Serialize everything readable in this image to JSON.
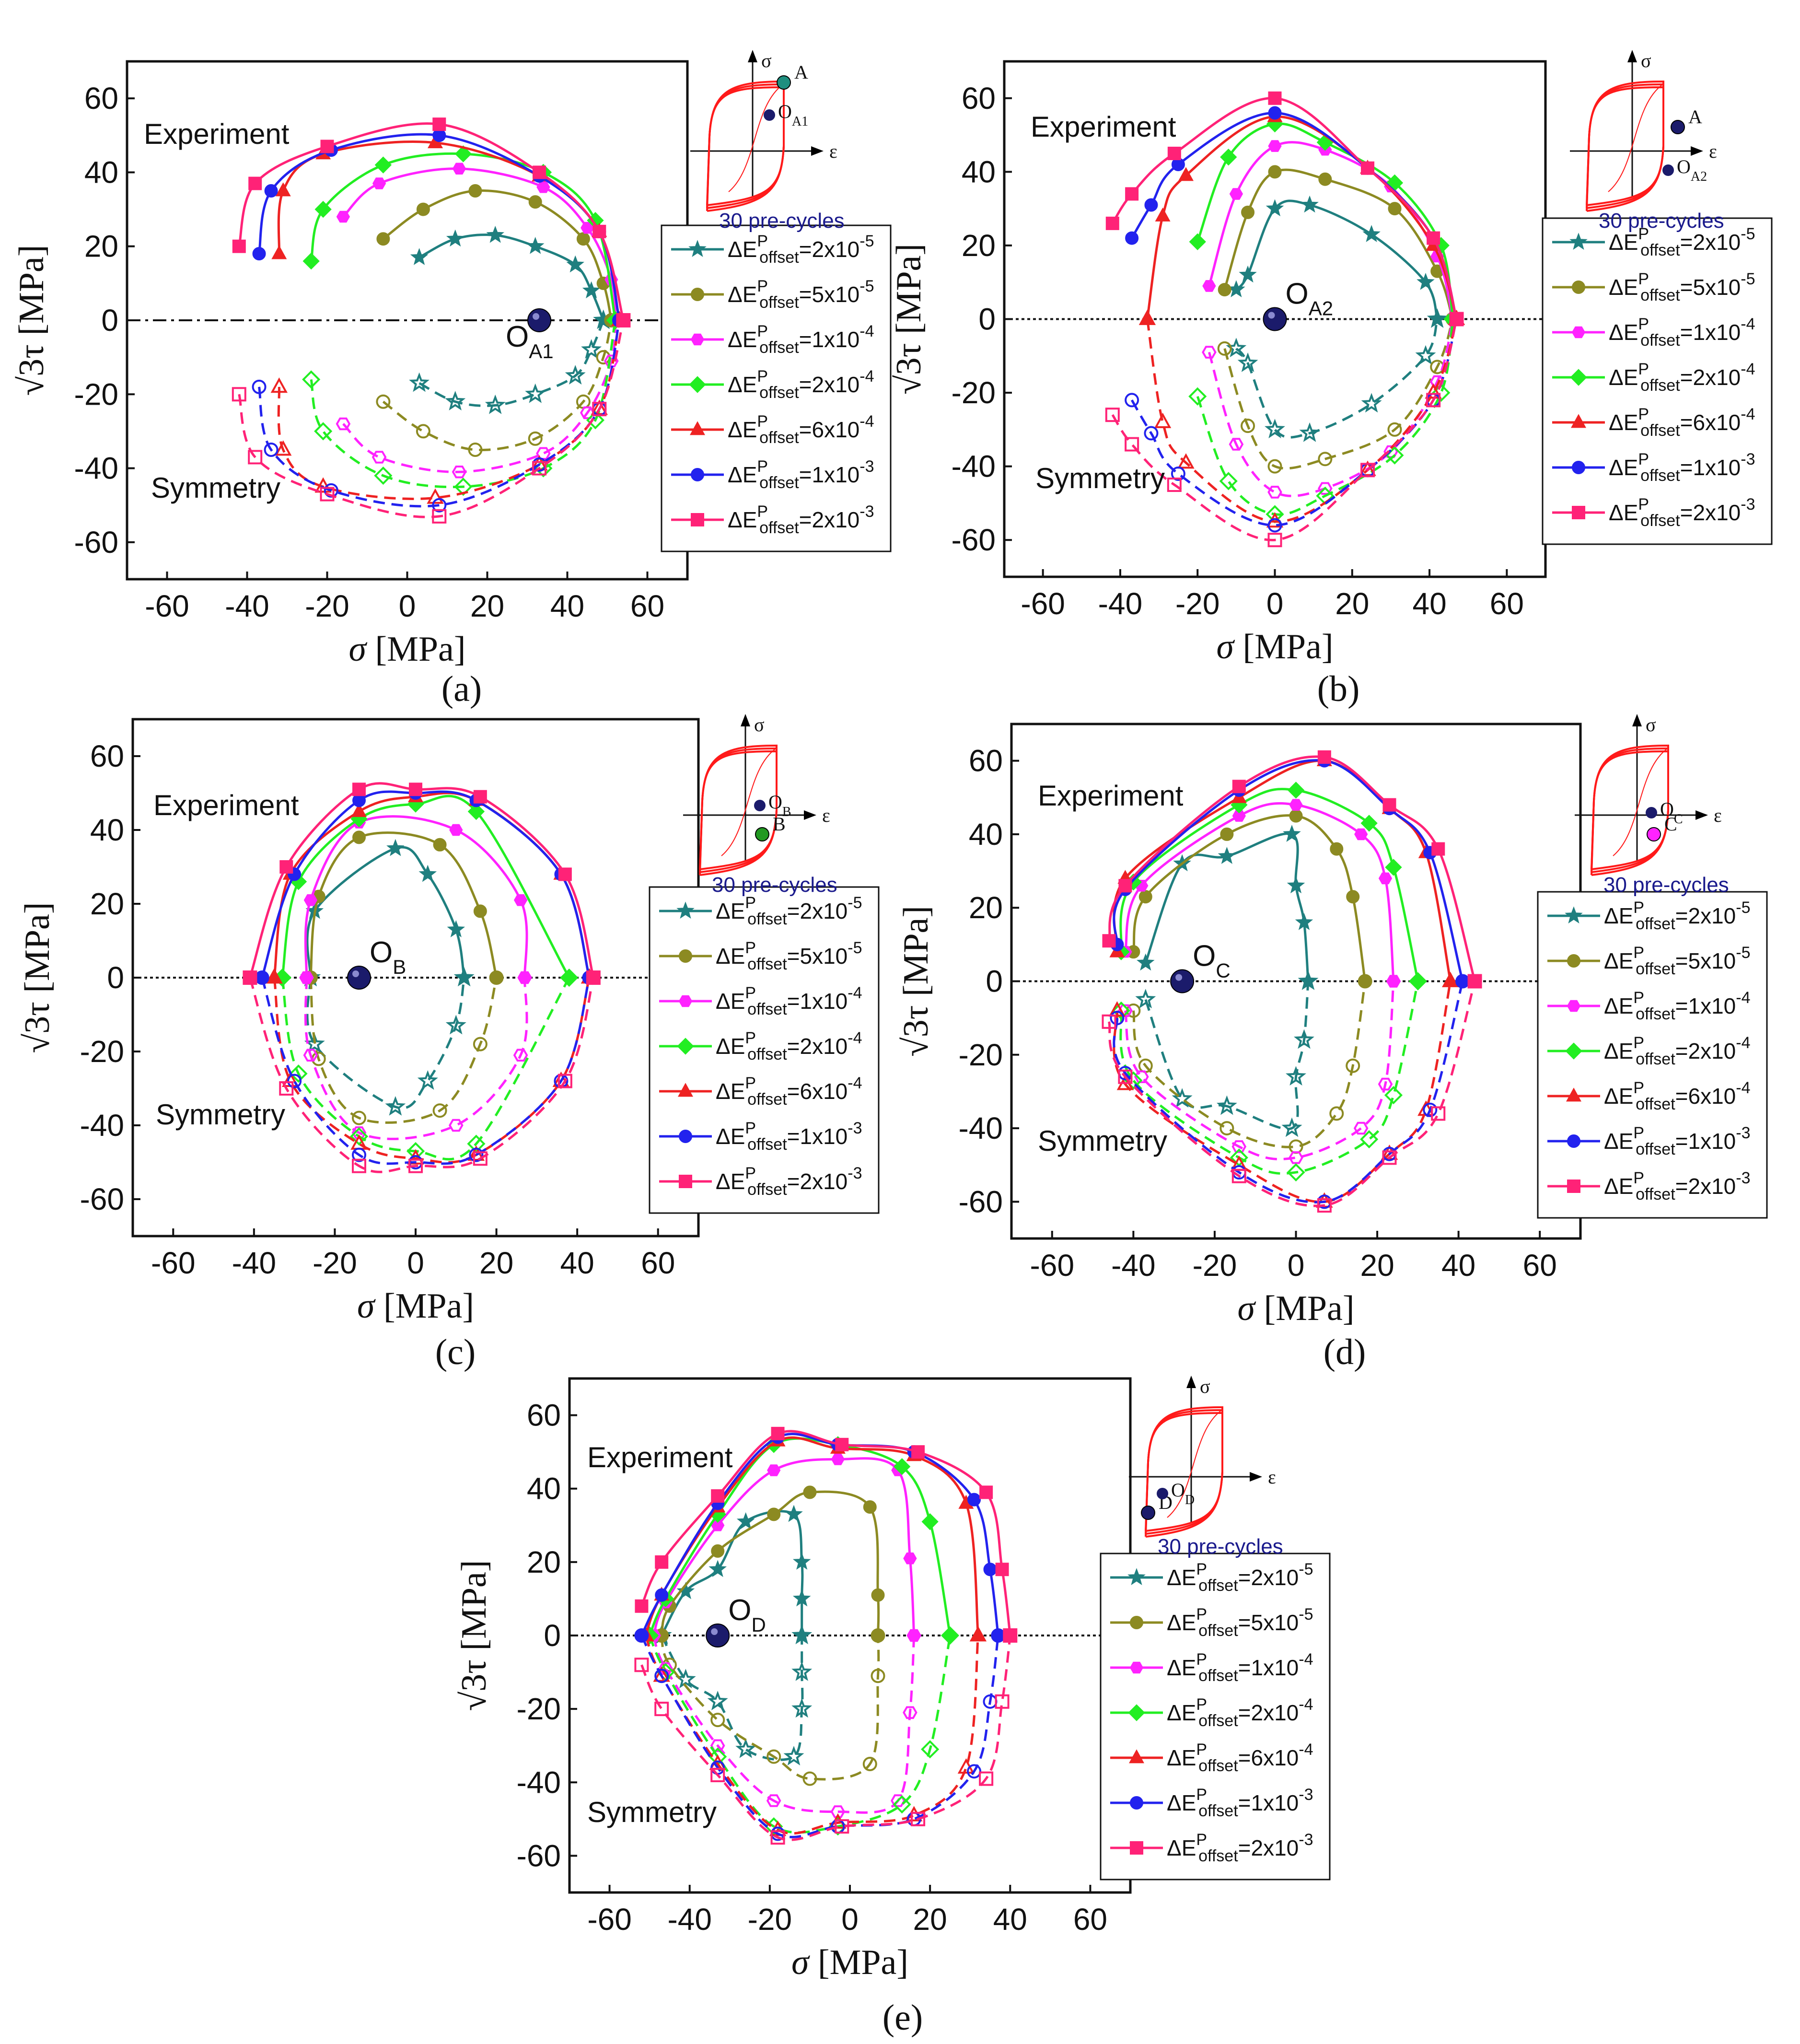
{
  "colors": {
    "series": [
      "#1f7f7f",
      "#8c8a22",
      "#ff22ff",
      "#22ee22",
      "#ee2222",
      "#2222ee",
      "#ff2277"
    ],
    "ref_point": "#1b1b6b",
    "inset_curve": "#ff1a1a",
    "precycle_text": "#1a1a8c"
  },
  "common": {
    "xlabel_symbol": "σ",
    "xlabel_unit": "[MPa]",
    "ylabel_symbol": "√3τ",
    "ylabel_unit": "[MPa]",
    "experiment_label": "Experiment",
    "symmetry_label": "Symmetry",
    "precycles_label": "30 pre-cycles",
    "inset_sigma": "σ",
    "inset_eps": "ε",
    "legend_prefix": "ΔE",
    "legend_sup": "P",
    "legend_sub": "offset",
    "legend_entries": [
      "=2x10",
      "=5x10",
      "=1x10",
      "=2x10",
      "=6x10",
      "=1x10",
      "=2x10"
    ],
    "legend_exps": [
      "-5",
      "-5",
      "-4",
      "-4",
      "-4",
      "-3",
      "-3"
    ],
    "x_ticks": [
      "-60",
      "-40",
      "-20",
      "0",
      "20",
      "40",
      "60"
    ],
    "y_ticks": [
      "60",
      "40",
      "20",
      "0",
      "-20",
      "-40",
      "-60"
    ]
  },
  "chart_data": [
    {
      "type": "scatter",
      "panel": "(a)",
      "caption": "(a)",
      "xlabel": "σ [MPa]",
      "ylabel": "√3τ [MPa]",
      "xlim": [
        -70,
        70
      ],
      "ylim": [
        -70,
        70
      ],
      "ref_point": {
        "name": "O",
        "sub": "A1",
        "x": 33,
        "y": 0
      },
      "inset_point_label": "A",
      "inset_point2_label": "O",
      "inset_point2_sub": "A1",
      "series": [
        {
          "name": "ΔEP offset=2x10-5",
          "x": [
            3,
            12,
            22,
            32,
            42,
            46,
            49
          ],
          "y": [
            17,
            22,
            23,
            20,
            15,
            8,
            0
          ]
        },
        {
          "name": "ΔEP offset=5x10-5",
          "x": [
            -6,
            4,
            17,
            32,
            44,
            49,
            51
          ],
          "y": [
            22,
            30,
            35,
            32,
            22,
            10,
            0
          ]
        },
        {
          "name": "ΔEP offset=1x10-4",
          "x": [
            -16,
            -7,
            13,
            34,
            45,
            51,
            52
          ],
          "y": [
            28,
            37,
            41,
            36,
            25,
            11,
            0
          ]
        },
        {
          "name": "ΔEP offset=2x10-4",
          "x": [
            -24,
            -21,
            -6,
            14,
            34,
            47,
            52
          ],
          "y": [
            16,
            30,
            42,
            45,
            40,
            27,
            0
          ]
        },
        {
          "name": "ΔEP offset=6x10-4",
          "x": [
            -32,
            -31,
            -21,
            7,
            33,
            48,
            53
          ],
          "y": [
            18,
            35,
            45,
            48,
            39,
            24,
            0
          ]
        },
        {
          "name": "ΔEP offset=1x10-3",
          "x": [
            -37,
            -34,
            -19,
            8,
            33,
            48,
            53
          ],
          "y": [
            18,
            35,
            46,
            50,
            39,
            24,
            0
          ]
        },
        {
          "name": "ΔEP offset=2x10-3",
          "x": [
            -42,
            -38,
            -20,
            8,
            33,
            48,
            54
          ],
          "y": [
            20,
            37,
            47,
            53,
            40,
            24,
            0
          ]
        }
      ]
    },
    {
      "type": "scatter",
      "panel": "(b)",
      "caption": "(b)",
      "xlabel": "σ [MPa]",
      "ylabel": "√3τ [MPa]",
      "xlim": [
        -70,
        70
      ],
      "ylim": [
        -70,
        70
      ],
      "ref_point": {
        "name": "O",
        "sub": "A2",
        "x": 0,
        "y": 0
      },
      "inset_point_label": "A",
      "inset_point2_label": "O",
      "inset_point2_sub": "A2",
      "series": [
        {
          "name": "ΔEP offset=2x10-5",
          "x": [
            -10,
            -7,
            0,
            9,
            25,
            39,
            42
          ],
          "y": [
            8,
            12,
            30,
            31,
            23,
            10,
            0
          ]
        },
        {
          "name": "ΔEP offset=5x10-5",
          "x": [
            -13,
            -7,
            0,
            13,
            31,
            42,
            46
          ],
          "y": [
            8,
            29,
            40,
            38,
            30,
            13,
            0
          ]
        },
        {
          "name": "ΔEP offset=1x10-4",
          "x": [
            -17,
            -10,
            0,
            13,
            30,
            42,
            46
          ],
          "y": [
            9,
            34,
            47,
            46,
            36,
            17,
            0
          ]
        },
        {
          "name": "ΔEP offset=2x10-4",
          "x": [
            -20,
            -12,
            0,
            13,
            31,
            43,
            46
          ],
          "y": [
            21,
            44,
            53,
            48,
            37,
            20,
            0
          ]
        },
        {
          "name": "ΔEP offset=6x10-4",
          "x": [
            -33,
            -29,
            -23,
            0,
            24,
            41,
            47
          ],
          "y": [
            0,
            28,
            39,
            55,
            41,
            20,
            0
          ]
        },
        {
          "name": "ΔEP offset=1x10-3",
          "x": [
            -37,
            -32,
            -25,
            0,
            24,
            41,
            47
          ],
          "y": [
            22,
            31,
            42,
            56,
            41,
            22,
            0
          ]
        },
        {
          "name": "ΔEP offset=2x10-3",
          "x": [
            -42,
            -37,
            -26,
            0,
            24,
            41,
            47
          ],
          "y": [
            26,
            34,
            45,
            60,
            41,
            22,
            0
          ]
        }
      ]
    },
    {
      "type": "scatter",
      "panel": "(c)",
      "caption": "(c)",
      "xlabel": "σ [MPa]",
      "ylabel": "√3τ [MPa]",
      "xlim": [
        -70,
        70
      ],
      "ylim": [
        -70,
        70
      ],
      "ref_point": {
        "name": "O",
        "sub": "B",
        "x": -14,
        "y": 0
      },
      "inset_point_label": "B",
      "inset_point2_label": "O",
      "inset_point2_sub": "B",
      "series": [
        {
          "name": "ΔEP offset=2x10-5",
          "x": [
            -26,
            -25,
            -5,
            3,
            10,
            12
          ],
          "y": [
            0,
            18,
            35,
            28,
            13,
            0
          ]
        },
        {
          "name": "ΔEP offset=5x10-5",
          "x": [
            -26,
            -24,
            -14,
            6,
            16,
            20
          ],
          "y": [
            0,
            22,
            38,
            36,
            18,
            0
          ]
        },
        {
          "name": "ΔEP offset=1x10-4",
          "x": [
            -27,
            -26,
            -14,
            10,
            26,
            27
          ],
          "y": [
            0,
            21,
            42,
            40,
            21,
            0
          ]
        },
        {
          "name": "ΔEP offset=2x10-4",
          "x": [
            -33,
            -29,
            -14,
            0,
            15,
            38
          ],
          "y": [
            0,
            26,
            43,
            47,
            45,
            0
          ]
        },
        {
          "name": "ΔEP offset=6x10-4",
          "x": [
            -35,
            -31,
            -14,
            0,
            15,
            36,
            43
          ],
          "y": [
            0,
            28,
            45,
            49,
            48,
            28,
            0
          ]
        },
        {
          "name": "ΔEP offset=1x10-3",
          "x": [
            -38,
            -30,
            -14,
            0,
            15,
            36,
            43
          ],
          "y": [
            0,
            28,
            48,
            50,
            48,
            28,
            0
          ]
        },
        {
          "name": "ΔEP offset=2x10-3",
          "x": [
            -41,
            -32,
            -14,
            0,
            16,
            37,
            44
          ],
          "y": [
            0,
            30,
            51,
            51,
            49,
            28,
            0
          ]
        }
      ]
    },
    {
      "type": "scatter",
      "panel": "(d)",
      "caption": "(d)",
      "xlabel": "σ [MPa]",
      "ylabel": "√3τ [MPa]",
      "xlim": [
        -70,
        70
      ],
      "ylim": [
        -70,
        70
      ],
      "ref_point": {
        "name": "O",
        "sub": "C",
        "x": -28,
        "y": 0
      },
      "inset_point_label": "C",
      "inset_point2_label": "O",
      "inset_point2_sub": "C",
      "series": [
        {
          "name": "ΔEP offset=2x10-5",
          "x": [
            -37,
            -28,
            -17,
            -1,
            0,
            2,
            3
          ],
          "y": [
            5,
            32,
            34,
            40,
            26,
            16,
            0
          ]
        },
        {
          "name": "ΔEP offset=5x10-5",
          "x": [
            -40,
            -37,
            -17,
            0,
            10,
            14,
            17
          ],
          "y": [
            8,
            23,
            40,
            45,
            36,
            23,
            0
          ]
        },
        {
          "name": "ΔEP offset=1x10-4",
          "x": [
            -42,
            -38,
            -14,
            0,
            16,
            22,
            24
          ],
          "y": [
            8,
            26,
            45,
            48,
            40,
            28,
            0
          ]
        },
        {
          "name": "ΔEP offset=2x10-4",
          "x": [
            -43,
            -40,
            -14,
            0,
            18,
            24,
            30
          ],
          "y": [
            8,
            27,
            48,
            52,
            43,
            31,
            0
          ]
        },
        {
          "name": "ΔEP offset=6x10-4",
          "x": [
            -44,
            -42,
            -14,
            7,
            23,
            32,
            38
          ],
          "y": [
            8,
            28,
            50,
            60,
            47,
            35,
            0
          ]
        },
        {
          "name": "ΔEP offset=1x10-3",
          "x": [
            -44,
            -42,
            -14,
            7,
            23,
            33,
            41
          ],
          "y": [
            10,
            25,
            52,
            60,
            47,
            35,
            0
          ]
        },
        {
          "name": "ΔEP offset=2x10-3",
          "x": [
            -46,
            -42,
            -14,
            7,
            23,
            35,
            44
          ],
          "y": [
            11,
            26,
            53,
            61,
            48,
            36,
            0
          ]
        }
      ]
    },
    {
      "type": "scatter",
      "panel": "(e)",
      "caption": "(e)",
      "xlabel": "σ [MPa]",
      "ylabel": "√3τ [MPa]",
      "xlim": [
        -70,
        70
      ],
      "ylim": [
        -70,
        70
      ],
      "ref_point": {
        "name": "O",
        "sub": "D",
        "x": -33,
        "y": 0
      },
      "inset_point_label": "D",
      "inset_point2_label": "O",
      "inset_point2_sub": "D",
      "series": [
        {
          "name": "ΔEP offset=2x10-5",
          "x": [
            -47,
            -41,
            -33,
            -26,
            -14,
            -12,
            -12,
            -12
          ],
          "y": [
            0,
            12,
            18,
            31,
            33,
            20,
            10,
            0
          ]
        },
        {
          "name": "ΔEP offset=5x10-5",
          "x": [
            -47,
            -45,
            -33,
            -19,
            -10,
            5,
            7,
            7
          ],
          "y": [
            0,
            8,
            23,
            33,
            39,
            35,
            11,
            0
          ]
        },
        {
          "name": "ΔEP offset=1x10-4",
          "x": [
            -49,
            -46,
            -33,
            -19,
            -3,
            12,
            15,
            16
          ],
          "y": [
            0,
            9,
            30,
            45,
            48,
            45,
            21,
            0
          ]
        },
        {
          "name": "ΔEP offset=2x10-4",
          "x": [
            -50,
            -46,
            -33,
            -19,
            -3,
            13,
            20,
            25
          ],
          "y": [
            0,
            10,
            33,
            52,
            52,
            46,
            31,
            0
          ]
        },
        {
          "name": "ΔEP offset=6x10-4",
          "x": [
            -51,
            -47,
            -33,
            -18,
            -3,
            16,
            29,
            32
          ],
          "y": [
            0,
            11,
            35,
            53,
            51,
            49,
            36,
            0
          ]
        },
        {
          "name": "ΔEP offset=1x10-3",
          "x": [
            -52,
            -47,
            -33,
            -18,
            -3,
            16,
            31,
            35,
            37
          ],
          "y": [
            0,
            11,
            36,
            54,
            52,
            50,
            37,
            18,
            0
          ]
        },
        {
          "name": "ΔEP offset=2x10-3",
          "x": [
            -52,
            -47,
            -33,
            -18,
            -2,
            17,
            34,
            38,
            40
          ],
          "y": [
            8,
            20,
            38,
            55,
            52,
            50,
            39,
            18,
            0
          ]
        }
      ]
    }
  ]
}
